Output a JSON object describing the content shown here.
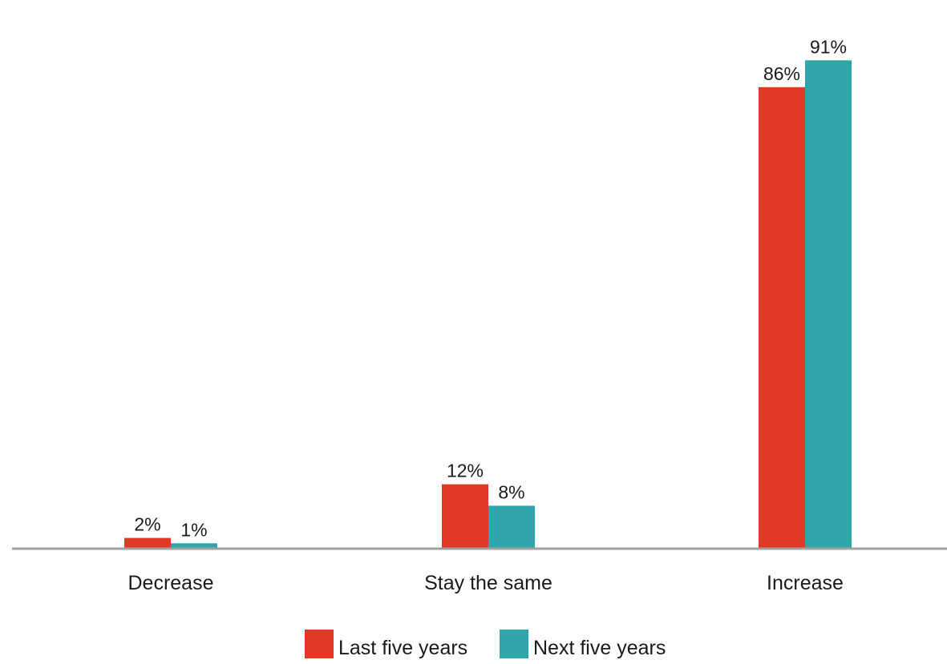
{
  "chart_data": {
    "type": "bar",
    "categories": [
      "Decrease",
      "Stay the same",
      "Increase"
    ],
    "series": [
      {
        "name": "Last five years",
        "values": [
          2,
          12,
          86
        ],
        "labels": [
          "2%",
          "12%",
          "86%"
        ]
      },
      {
        "name": "Next five years",
        "values": [
          1,
          8,
          91
        ],
        "labels": [
          "1%",
          "8%",
          "91%"
        ]
      }
    ],
    "ylim": [
      0,
      100
    ],
    "unit": "%",
    "grid": false,
    "legend_position": "bottom-center"
  },
  "colors": {
    "series": [
      "#e23826",
      "#30a6ab"
    ],
    "baseline": "#a0a0a0",
    "text": "#1a1a1a"
  }
}
